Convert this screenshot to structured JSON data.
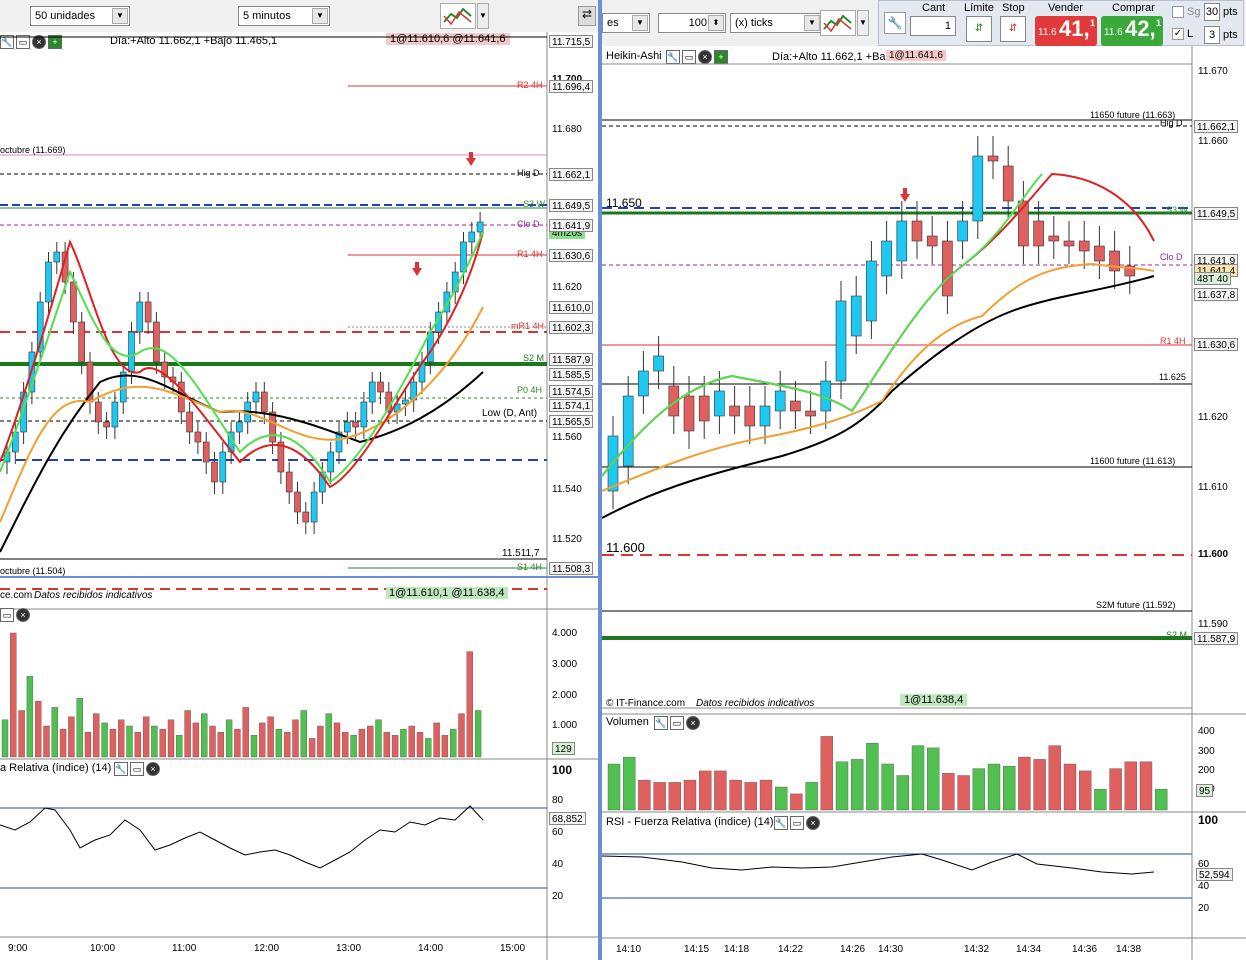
{
  "left_toolbar": {
    "units": "50 unidades",
    "interval": "5 minutos"
  },
  "right_toolbar": {
    "partial_label": "es",
    "qty_value": "100",
    "ticks_label": "(x) ticks",
    "cant_label": "Cant",
    "cant_value": "1",
    "limite_label": "Límite",
    "stop_label": "Stop",
    "vender_label": "Vender",
    "vender_small": "11.6",
    "vender_big": "41,",
    "vender_sup": "1",
    "comprar_label": "Comprar",
    "comprar_small": "11.6",
    "comprar_big": "42,",
    "comprar_sup": "1",
    "sg_label": "Sg",
    "l_label": "L",
    "pts1_value": "30",
    "pts1_label": "pts",
    "pts2_value": "3",
    "pts2_label": "pts"
  },
  "left_chart": {
    "header_info": "Día:+Alto 11.662,1 +Bajo 11.465,1",
    "bidask_top": "1@11.610,6 @11.641,6",
    "bidask_bottom_a": "1@11.610,1",
    "bidask_bottom_b": "@11.638,4",
    "copyright": "ce.com",
    "datos": "Datos recibidos indicativos",
    "octubre_top": "octubre (11.669)",
    "octubre_bottom": "octubre (11.504)",
    "low_label": "Low (D, Ant)",
    "value_11511": "11.511,7",
    "countdown": "4m20s",
    "axis_ticks": [
      {
        "price": "11.700",
        "bold": true
      },
      {
        "price": "11.680",
        "bold": false
      },
      {
        "price": "11.620",
        "bold": false
      },
      {
        "price": "11.560",
        "bold": false
      },
      {
        "price": "11.540",
        "bold": false
      },
      {
        "price": "11.520",
        "bold": false
      }
    ],
    "level_tags": [
      {
        "price": "11.715,5",
        "label": ""
      },
      {
        "price": "11.696,4",
        "label": "R2 4H"
      },
      {
        "price": "11.662,1",
        "label": "Hig D"
      },
      {
        "price": "11.649,5",
        "label": "S3 W"
      },
      {
        "price": "11.641,9",
        "label": "Clo D"
      },
      {
        "price": "11.630,6",
        "label": "R1 4H"
      },
      {
        "price": "11.610,0",
        "label": ""
      },
      {
        "price": "11.602,3",
        "label": "mR1 4H"
      },
      {
        "price": "11.587,9",
        "label": "S2 M"
      },
      {
        "price": "11.585,5",
        "label": ""
      },
      {
        "price": "11.574,5",
        "label": "P0 4H"
      },
      {
        "price": "11.574,1",
        "label": ""
      },
      {
        "price": "11.565,5",
        "label": ""
      },
      {
        "price": "11.508,3",
        "label": "S1 4H"
      }
    ],
    "volume_header": "",
    "volume_axis": [
      "4.000",
      "3.000",
      "2.000",
      "1.000"
    ],
    "volume_last": "129",
    "rsi_header": "a Relativa (índice) (14)",
    "rsi_axis": [
      "100",
      "80",
      "60",
      "40",
      "20"
    ],
    "rsi_last": "68,852",
    "time_labels": [
      "9:00",
      "10:00",
      "11:00",
      "12:00",
      "13:00",
      "14:00",
      "15:00"
    ]
  },
  "right_chart": {
    "header_title": "Heikin-Ashi",
    "header_info": "Día:+Alto 11.662,1 +Ba",
    "header_bidask": "1@11.641,6",
    "label_11650": "11.650",
    "label_11600": "11.600",
    "future_11650": "11650 future (11.663)",
    "future_11600": "11600 future (11.613)",
    "future_s2m": "S2M future (11.592)",
    "label_11625": "11.625",
    "copyright": "© IT-Finance.com",
    "datos": "Datos recibidos indicativos",
    "bidask_bottom": "1@11.638,4",
    "axis_ticks": [
      {
        "price": "11.670",
        "bold": false
      },
      {
        "price": "11.660",
        "bold": false
      },
      {
        "price": "11.620",
        "bold": false
      },
      {
        "price": "11.610",
        "bold": false
      },
      {
        "price": "11.600",
        "bold": true
      },
      {
        "price": "11.590",
        "bold": false
      }
    ],
    "level_tags": [
      {
        "price": "11.662,1",
        "label": "Hig D"
      },
      {
        "price": "11.649,5",
        "label": "S3 W"
      },
      {
        "price": "11.641,9",
        "label": "Clo D"
      },
      {
        "price": "11.641,4",
        "label": ""
      },
      {
        "price": "11.637,8",
        "label": ""
      },
      {
        "price": "11.630,6",
        "label": "R1 4H"
      },
      {
        "price": "11.587,9",
        "label": "S2 M"
      }
    ],
    "ticks_tag": "48T 40",
    "volume_header": "Volumen",
    "volume_axis": [
      "400",
      "300",
      "200",
      "100"
    ],
    "volume_last": "95",
    "rsi_header": "RSI - Fuerza Relativa (índice) (14)",
    "rsi_axis": [
      "100",
      "60",
      "40",
      "20"
    ],
    "rsi_last": "52,594",
    "time_labels": [
      "14:10",
      "14:15",
      "14:18",
      "14:22",
      "14:26",
      "14:30",
      "14:32",
      "14:34",
      "14:36",
      "14:38"
    ]
  },
  "colors": {
    "bull": "#1ec8f0",
    "bear": "#e06060",
    "sell": "#e03a3a",
    "buy": "#3aa83a",
    "divider": "#6b8fd6"
  }
}
